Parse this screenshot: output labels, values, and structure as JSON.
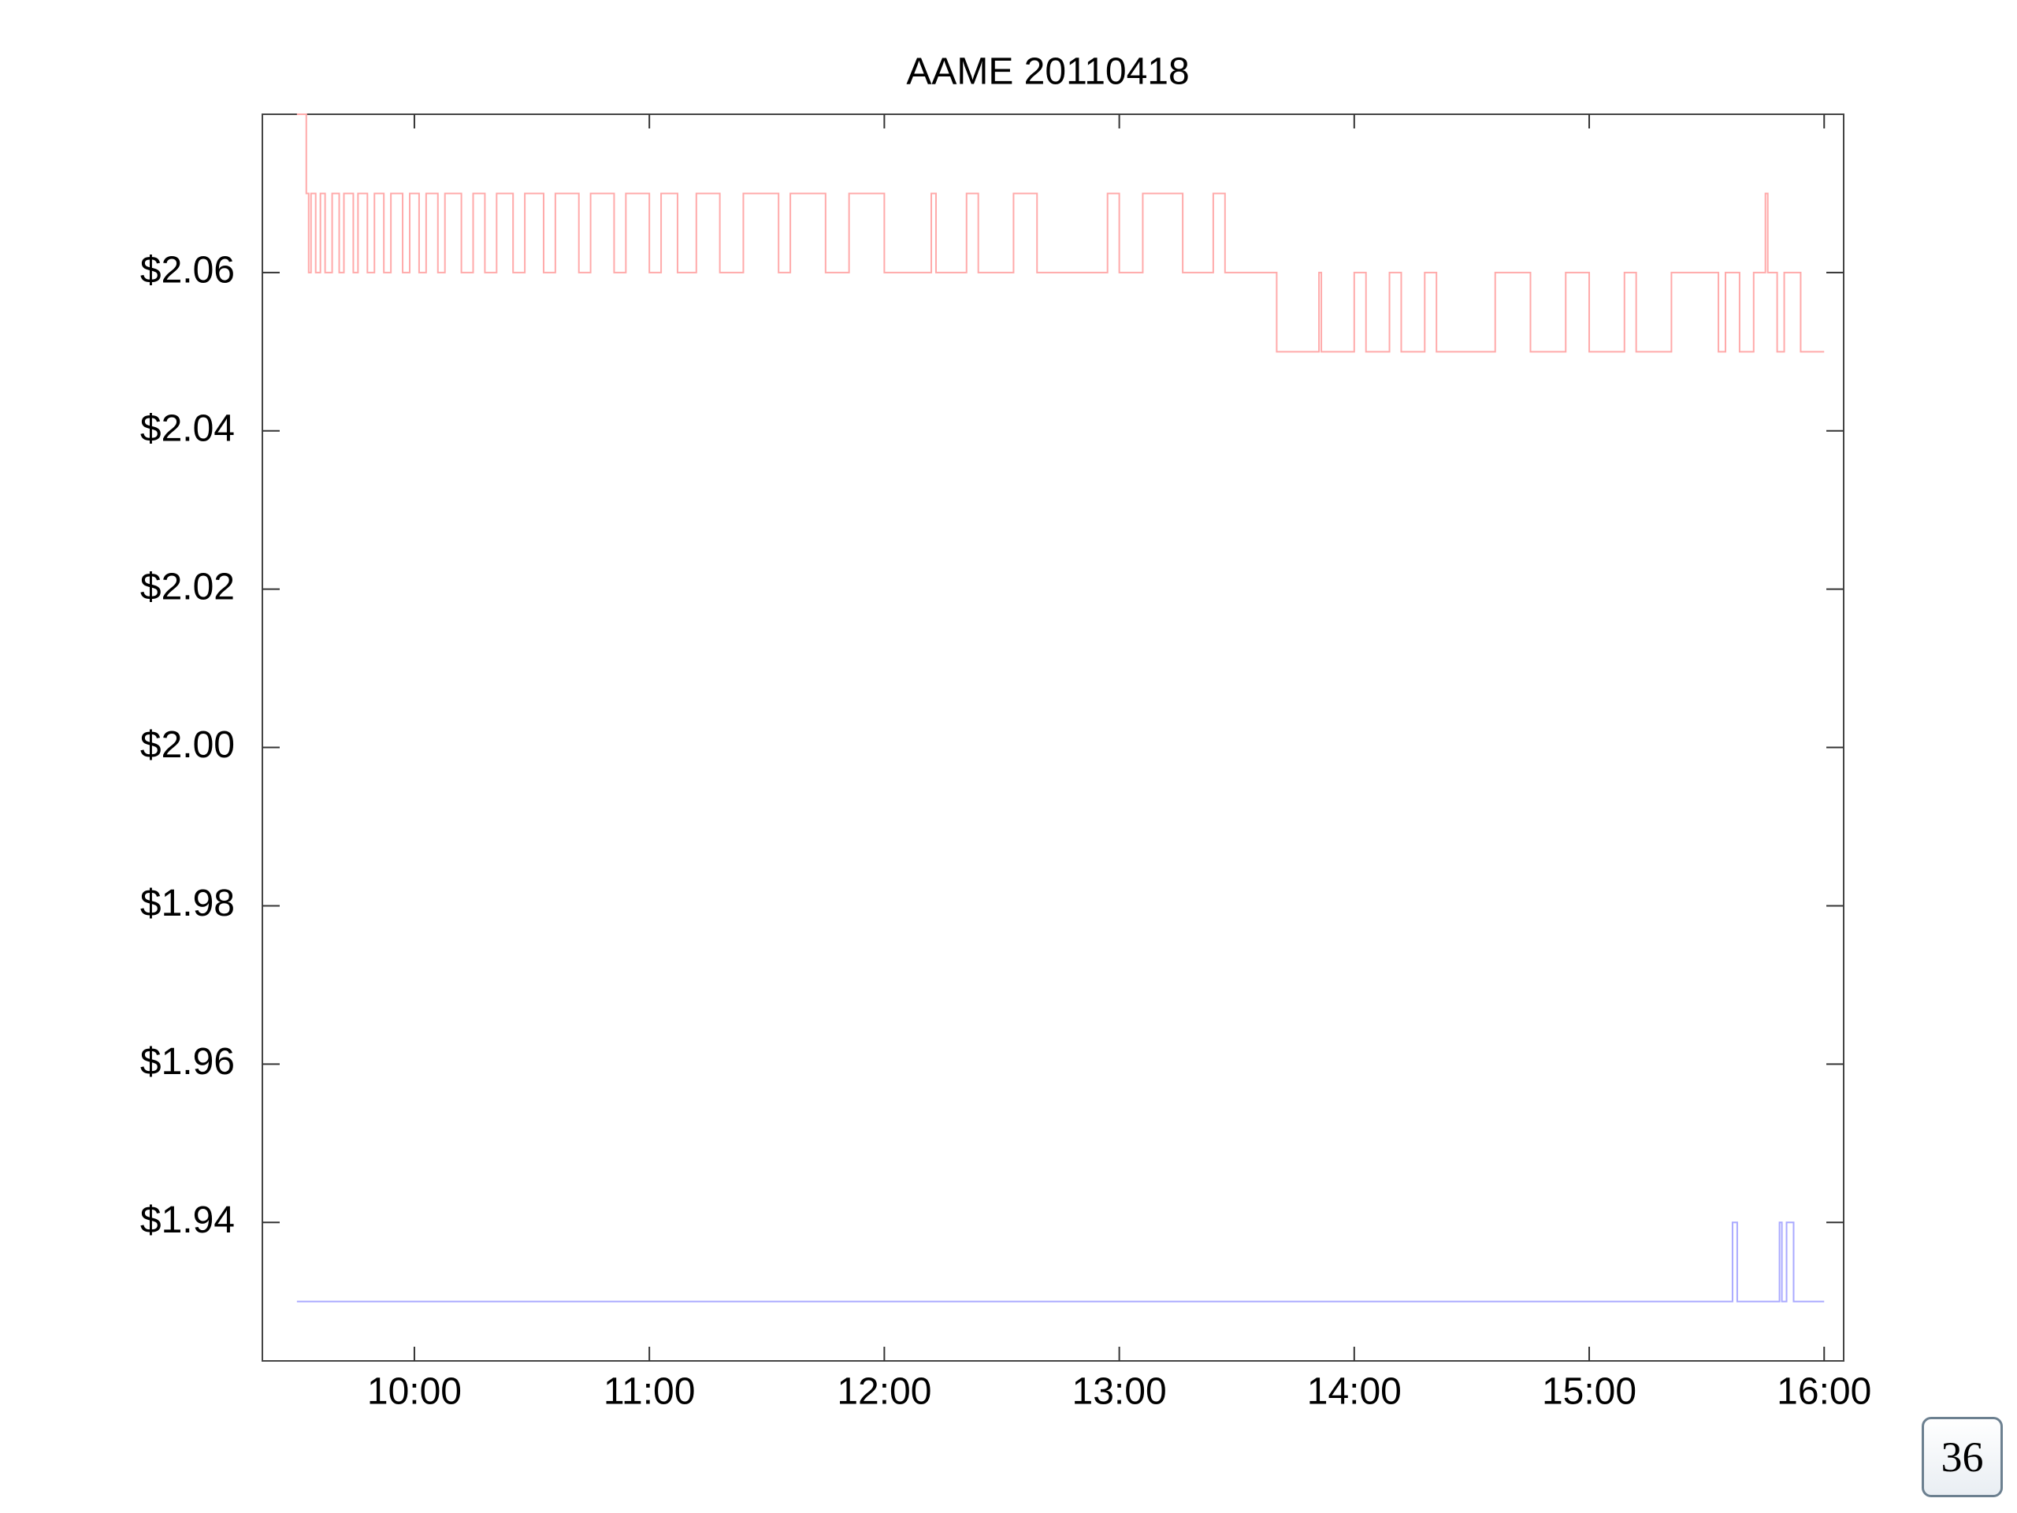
{
  "chart_data": {
    "type": "line",
    "title": "AAME 20110418",
    "step": true,
    "grid": false,
    "xlim": [
      9.353,
      16.083
    ],
    "ylim": [
      1.9225,
      2.08
    ],
    "xticks": [
      {
        "value": 10,
        "label": "10:00"
      },
      {
        "value": 11,
        "label": "11:00"
      },
      {
        "value": 12,
        "label": "12:00"
      },
      {
        "value": 13,
        "label": "13:00"
      },
      {
        "value": 14,
        "label": "14:00"
      },
      {
        "value": 15,
        "label": "15:00"
      },
      {
        "value": 16,
        "label": "16:00"
      }
    ],
    "yticks": [
      {
        "value": 1.94,
        "label": "$1.94"
      },
      {
        "value": 1.96,
        "label": "$1.96"
      },
      {
        "value": 1.98,
        "label": "$1.98"
      },
      {
        "value": 2.0,
        "label": "$2.00"
      },
      {
        "value": 2.02,
        "label": "$2.02"
      },
      {
        "value": 2.04,
        "label": "$2.04"
      },
      {
        "value": 2.06,
        "label": "$2.06"
      }
    ],
    "series": [
      {
        "color": "#ffaaaa",
        "x": [
          9.5,
          9.54,
          9.55,
          9.56,
          9.58,
          9.6,
          9.62,
          9.65,
          9.68,
          9.7,
          9.74,
          9.76,
          9.8,
          9.83,
          9.87,
          9.9,
          9.95,
          9.98,
          10.02,
          10.05,
          10.1,
          10.13,
          10.2,
          10.25,
          10.3,
          10.35,
          10.42,
          10.47,
          10.55,
          10.6,
          10.7,
          10.75,
          10.85,
          10.9,
          11.0,
          11.05,
          11.12,
          11.2,
          11.3,
          11.4,
          11.55,
          11.6,
          11.75,
          11.85,
          12.0,
          12.2,
          12.22,
          12.35,
          12.4,
          12.55,
          12.65,
          12.95,
          13.0,
          13.1,
          13.27,
          13.4,
          13.45,
          13.67,
          13.85,
          13.86,
          14.0,
          14.05,
          14.15,
          14.2,
          14.3,
          14.35,
          14.6,
          14.75,
          14.9,
          15.0,
          15.15,
          15.2,
          15.35,
          15.55,
          15.58,
          15.64,
          15.7,
          15.75,
          15.76,
          15.8,
          15.83,
          15.9,
          16.0
        ],
        "values": [
          2.08,
          2.07,
          2.06,
          2.07,
          2.06,
          2.07,
          2.06,
          2.07,
          2.06,
          2.07,
          2.06,
          2.07,
          2.06,
          2.07,
          2.06,
          2.07,
          2.06,
          2.07,
          2.06,
          2.07,
          2.06,
          2.07,
          2.06,
          2.07,
          2.06,
          2.07,
          2.06,
          2.07,
          2.06,
          2.07,
          2.06,
          2.07,
          2.06,
          2.07,
          2.06,
          2.07,
          2.06,
          2.07,
          2.06,
          2.07,
          2.06,
          2.07,
          2.06,
          2.07,
          2.06,
          2.07,
          2.06,
          2.07,
          2.06,
          2.07,
          2.06,
          2.07,
          2.06,
          2.07,
          2.06,
          2.07,
          2.06,
          2.05,
          2.06,
          2.05,
          2.06,
          2.05,
          2.06,
          2.05,
          2.06,
          2.05,
          2.06,
          2.05,
          2.06,
          2.05,
          2.06,
          2.05,
          2.06,
          2.05,
          2.06,
          2.05,
          2.06,
          2.07,
          2.06,
          2.05,
          2.06,
          2.05,
          2.05
        ]
      },
      {
        "color": "#aaaaff",
        "x": [
          9.5,
          15.61,
          15.63,
          15.81,
          15.82,
          15.84,
          15.87,
          16.0
        ],
        "values": [
          1.93,
          1.94,
          1.93,
          1.94,
          1.93,
          1.94,
          1.93,
          1.93
        ]
      }
    ]
  },
  "page_number": "36"
}
